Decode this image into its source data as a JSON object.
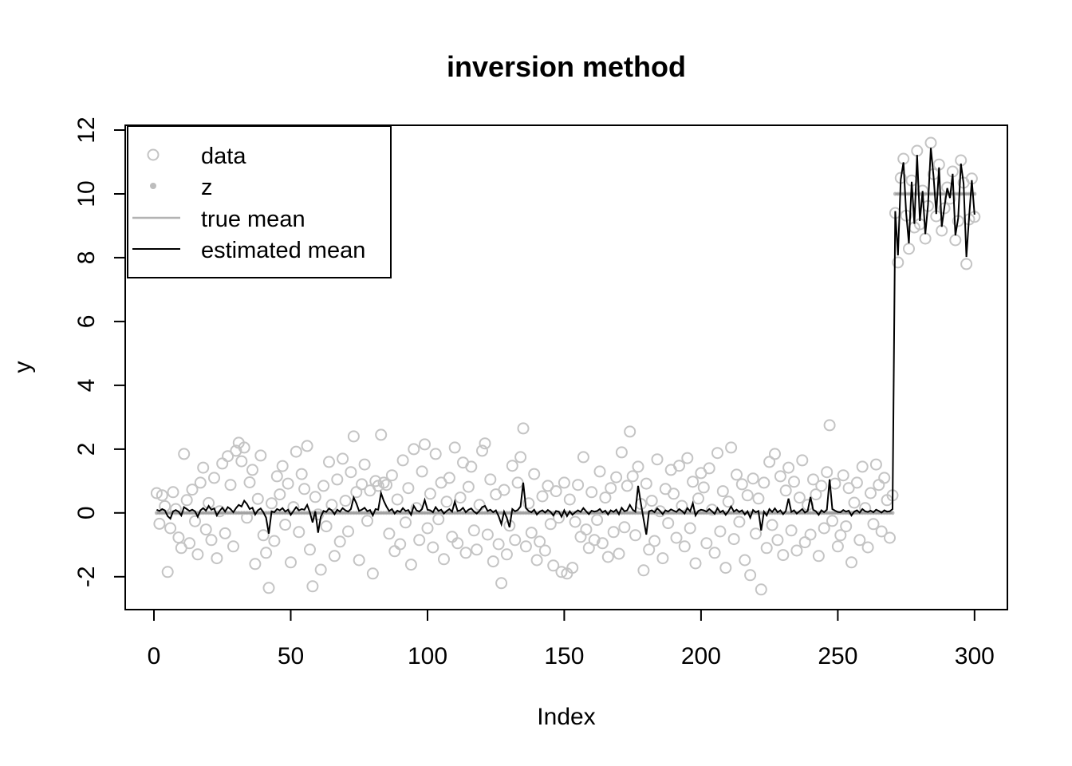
{
  "header": {
    "title": "inversion method"
  },
  "axes": {
    "x_label": "Index",
    "y_label": "y",
    "x_ticks": [
      0,
      50,
      100,
      150,
      200,
      250,
      300
    ],
    "y_ticks": [
      -2,
      0,
      2,
      4,
      6,
      8,
      10,
      12
    ]
  },
  "legend": {
    "entries": [
      {
        "symbol": "open-circle-icon",
        "label": "data"
      },
      {
        "symbol": "filled-dot-icon",
        "label": "z"
      },
      {
        "symbol": "gray-line-icon",
        "label": "true mean"
      },
      {
        "symbol": "black-line-icon",
        "label": "estimated mean"
      }
    ]
  },
  "colors": {
    "background": "#ffffff",
    "data_points": "#c4c4c4",
    "z_points": "#bdbdbd",
    "true_mean": "#a0a0a0",
    "estimated_mean": "#000000",
    "axis": "#000000"
  },
  "chart_data": {
    "type": "scatter",
    "title": "inversion method",
    "xlabel": "Index",
    "ylabel": "y",
    "xlim": [
      -10.5,
      312
    ],
    "ylim": [
      -3.03,
      12.15
    ],
    "x_ticks": [
      0,
      50,
      100,
      150,
      200,
      250,
      300
    ],
    "y_ticks": [
      -2,
      0,
      2,
      4,
      6,
      8,
      10,
      12
    ],
    "grid": false,
    "legend_position": "topleft",
    "x_start_index": 1,
    "changepoint_index": 271,
    "series": [
      {
        "name": "data",
        "type": "scatter-open-circle",
        "values": [
          0.62,
          -0.34,
          0.55,
          0.21,
          -1.85,
          -0.48,
          0.65,
          0.12,
          -0.77,
          -1.1,
          1.85,
          0.4,
          -0.95,
          0.73,
          -0.26,
          -1.3,
          0.95,
          1.42,
          -0.52,
          0.31,
          -0.85,
          1.1,
          -1.42,
          0.05,
          1.55,
          -0.64,
          1.78,
          0.88,
          -1.05,
          1.95,
          2.2,
          1.62,
          2.05,
          -0.15,
          0.96,
          1.35,
          -1.6,
          0.44,
          1.8,
          -0.7,
          -1.25,
          -2.35,
          0.3,
          -0.88,
          1.15,
          0.58,
          1.47,
          -0.37,
          0.92,
          -1.55,
          0.18,
          1.92,
          -0.6,
          1.22,
          0.75,
          2.1,
          -1.15,
          -2.3,
          0.5,
          -0.05,
          -1.78,
          0.85,
          -0.42,
          1.6,
          0.25,
          -1.35,
          1.05,
          -0.9,
          1.7,
          0.38,
          -0.58,
          1.28,
          2.4,
          0.65,
          -1.48,
          0.9,
          1.52,
          -0.25,
          0.7,
          -1.9,
          1.0,
          0.85,
          2.45,
          0.95,
          0.88,
          -0.65,
          1.18,
          -1.2,
          0.42,
          -0.98,
          1.65,
          -0.3,
          0.78,
          -1.62,
          2.0,
          0.15,
          -0.85,
          1.3,
          2.15,
          -0.48,
          0.6,
          -1.08,
          1.85,
          -0.2,
          0.95,
          -1.45,
          0.35,
          1.1,
          -0.75,
          2.05,
          -0.95,
          0.48,
          1.58,
          -1.25,
          0.82,
          1.45,
          -0.55,
          -1.15,
          0.25,
          1.95,
          2.18,
          -0.68,
          1.05,
          -1.52,
          0.58,
          -0.98,
          -2.2,
          0.72,
          -1.3,
          -0.4,
          1.48,
          -0.85,
          0.95,
          1.75,
          2.65,
          -1.05,
          0.3,
          -0.62,
          1.22,
          -1.48,
          -0.9,
          0.52,
          -1.18,
          0.85,
          -0.35,
          -1.65,
          0.68,
          -0.15,
          -1.85,
          0.95,
          -1.9,
          0.42,
          -1.72,
          -0.28,
          0.88,
          -0.75,
          1.75,
          -0.52,
          -1.1,
          0.65,
          -0.85,
          -0.22,
          1.3,
          -0.95,
          0.48,
          -1.38,
          0.78,
          -0.6,
          1.12,
          -1.28,
          1.9,
          -0.45,
          0.85,
          2.55,
          1.15,
          -0.7,
          1.45,
          0.28,
          -1.8,
          0.92,
          -1.15,
          0.38,
          -0.88,
          1.68,
          0.05,
          -1.42,
          0.75,
          -0.32,
          1.35,
          0.6,
          -0.78,
          1.48,
          0.22,
          -1.05,
          1.72,
          -0.48,
          0.98,
          -1.58,
          0.45,
          1.25,
          0.8,
          -0.95,
          1.4,
          0.1,
          -1.25,
          1.88,
          -0.58,
          0.68,
          -1.72,
          0.35,
          2.05,
          -0.82,
          1.2,
          -0.28,
          0.9,
          -1.48,
          0.55,
          -1.95,
          1.08,
          -0.65,
          0.45,
          -2.4,
          0.95,
          -1.1,
          1.6,
          -0.38,
          1.85,
          -0.85,
          1.15,
          -1.32,
          0.7,
          1.42,
          -0.55,
          0.98,
          -1.18,
          0.48,
          1.65,
          -0.92,
          0.25,
          -0.68,
          1.05,
          0.58,
          -1.35,
          0.85,
          -0.48,
          1.28,
          2.75,
          -0.25,
          0.92,
          -1.05,
          -0.7,
          1.18,
          -0.42,
          0.78,
          -1.55,
          0.32,
          0.95,
          -0.85,
          1.45,
          0.15,
          -1.08,
          0.62,
          -0.35,
          1.52,
          0.88,
          -0.58,
          1.1,
          0.4,
          -0.78,
          0.55,
          9.4,
          7.85,
          10.5,
          11.1,
          9.32,
          8.28,
          10.42,
          8.95,
          11.35,
          9.05,
          10.1,
          8.6,
          9.62,
          11.6,
          10.62,
          9.3,
          10.92,
          8.85,
          9.55,
          10.2,
          9.85,
          10.7,
          8.55,
          9.15,
          11.05,
          10.35,
          7.8,
          9.2,
          10.48,
          9.28
        ]
      },
      {
        "name": "z",
        "type": "scatter-filled-dot",
        "changepoint_index": 271,
        "value_before": 0,
        "value_after": 10
      },
      {
        "name": "true mean",
        "type": "step-line",
        "changepoint_index": 271,
        "value_before": 0,
        "value_after": 10
      },
      {
        "name": "estimated mean",
        "type": "line",
        "values": [
          0.1,
          0.06,
          0.12,
          0.08,
          -0.1,
          -0.18,
          0.05,
          0.09,
          0.04,
          -0.08,
          0.18,
          0.12,
          0.06,
          0.1,
          0.05,
          -0.12,
          0.08,
          0.15,
          0.07,
          0.22,
          0.1,
          0.14,
          -0.08,
          0.06,
          0.16,
          0.04,
          0.18,
          0.12,
          0.02,
          0.15,
          0.25,
          0.2,
          0.38,
          0.28,
          0.12,
          0.16,
          -0.05,
          0.08,
          0.14,
          0.02,
          -0.15,
          -0.65,
          0.05,
          0.02,
          0.12,
          0.08,
          0.15,
          0.04,
          0.1,
          -0.06,
          0.06,
          0.18,
          0.08,
          0.12,
          0.1,
          0.25,
          0.02,
          -0.3,
          0.05,
          -0.62,
          -0.12,
          0.06,
          0.03,
          0.14,
          0.08,
          -0.04,
          0.1,
          0.04,
          0.15,
          0.08,
          0.04,
          0.12,
          0.48,
          0.3,
          0.06,
          0.1,
          0.16,
          0.05,
          0.09,
          -0.08,
          0.12,
          0.1,
          0.62,
          0.38,
          0.2,
          0.06,
          0.12,
          -0.02,
          0.07,
          0.03,
          0.15,
          0.06,
          0.09,
          -0.06,
          0.22,
          0.08,
          0.04,
          0.12,
          0.4,
          0.1,
          0.08,
          0.02,
          0.18,
          0.06,
          0.1,
          -0.02,
          0.06,
          0.12,
          0.04,
          0.35,
          0.06,
          0.08,
          0.16,
          0.02,
          0.1,
          0.14,
          0.04,
          -0.02,
          0.06,
          0.18,
          0.22,
          0.06,
          0.1,
          0.02,
          0.08,
          -0.1,
          -0.35,
          0.04,
          -0.15,
          -0.45,
          0.12,
          0.05,
          0.09,
          0.2,
          0.95,
          0.15,
          0.06,
          0.02,
          0.1,
          -0.05,
          0.04,
          0.08,
          0.01,
          0.09,
          0.03,
          -0.08,
          0.06,
          0.04,
          -0.12,
          0.08,
          -0.1,
          0.05,
          -0.06,
          0.02,
          0.08,
          0.03,
          0.15,
          0.05,
          -0.04,
          0.07,
          0.04,
          0.06,
          0.12,
          0.02,
          0.07,
          -0.05,
          0.08,
          0.03,
          0.1,
          -0.04,
          0.16,
          0.05,
          0.08,
          0.25,
          0.1,
          0.04,
          0.85,
          0.3,
          -0.2,
          -0.68,
          0.05,
          0.08,
          0.02,
          0.14,
          0.06,
          -0.04,
          0.08,
          0.04,
          0.11,
          0.07,
          0.03,
          0.12,
          0.06,
          -0.02,
          0.15,
          0.05,
          0.3,
          -0.08,
          0.06,
          0.1,
          0.08,
          0.04,
          0.12,
          0.05,
          -0.03,
          0.15,
          0.02,
          0.07,
          -0.06,
          0.05,
          0.2,
          0.04,
          0.1,
          0.03,
          0.08,
          -0.05,
          0.05,
          -0.15,
          0.09,
          0.02,
          0.06,
          -0.55,
          0.04,
          -0.08,
          0.12,
          0.03,
          0.14,
          0.02,
          0.08,
          -0.04,
          0.06,
          0.45,
          0.03,
          0.08,
          -0.02,
          0.05,
          0.12,
          0.01,
          0.06,
          0.5,
          0.1,
          0.05,
          -0.06,
          0.08,
          0.02,
          0.1,
          1.05,
          0.12,
          0.07,
          0.03,
          0.02,
          0.09,
          0.04,
          0.07,
          -0.08,
          0.04,
          0.08,
          0.01,
          0.12,
          0.05,
          0.03,
          0.07,
          0.02,
          0.1,
          0.06,
          0.01,
          0.08,
          0.04,
          0.05,
          0.12,
          9.46,
          8.07,
          10.45,
          10.99,
          9.39,
          8.45,
          10.38,
          9.06,
          11.22,
          9.15,
          10.09,
          8.74,
          9.66,
          11.44,
          10.56,
          9.37,
          10.83,
          8.97,
          9.6,
          10.18,
          9.87,
          10.63,
          8.7,
          9.24,
          10.95,
          10.32,
          8.02,
          9.28,
          10.43,
          9.35
        ]
      }
    ]
  }
}
